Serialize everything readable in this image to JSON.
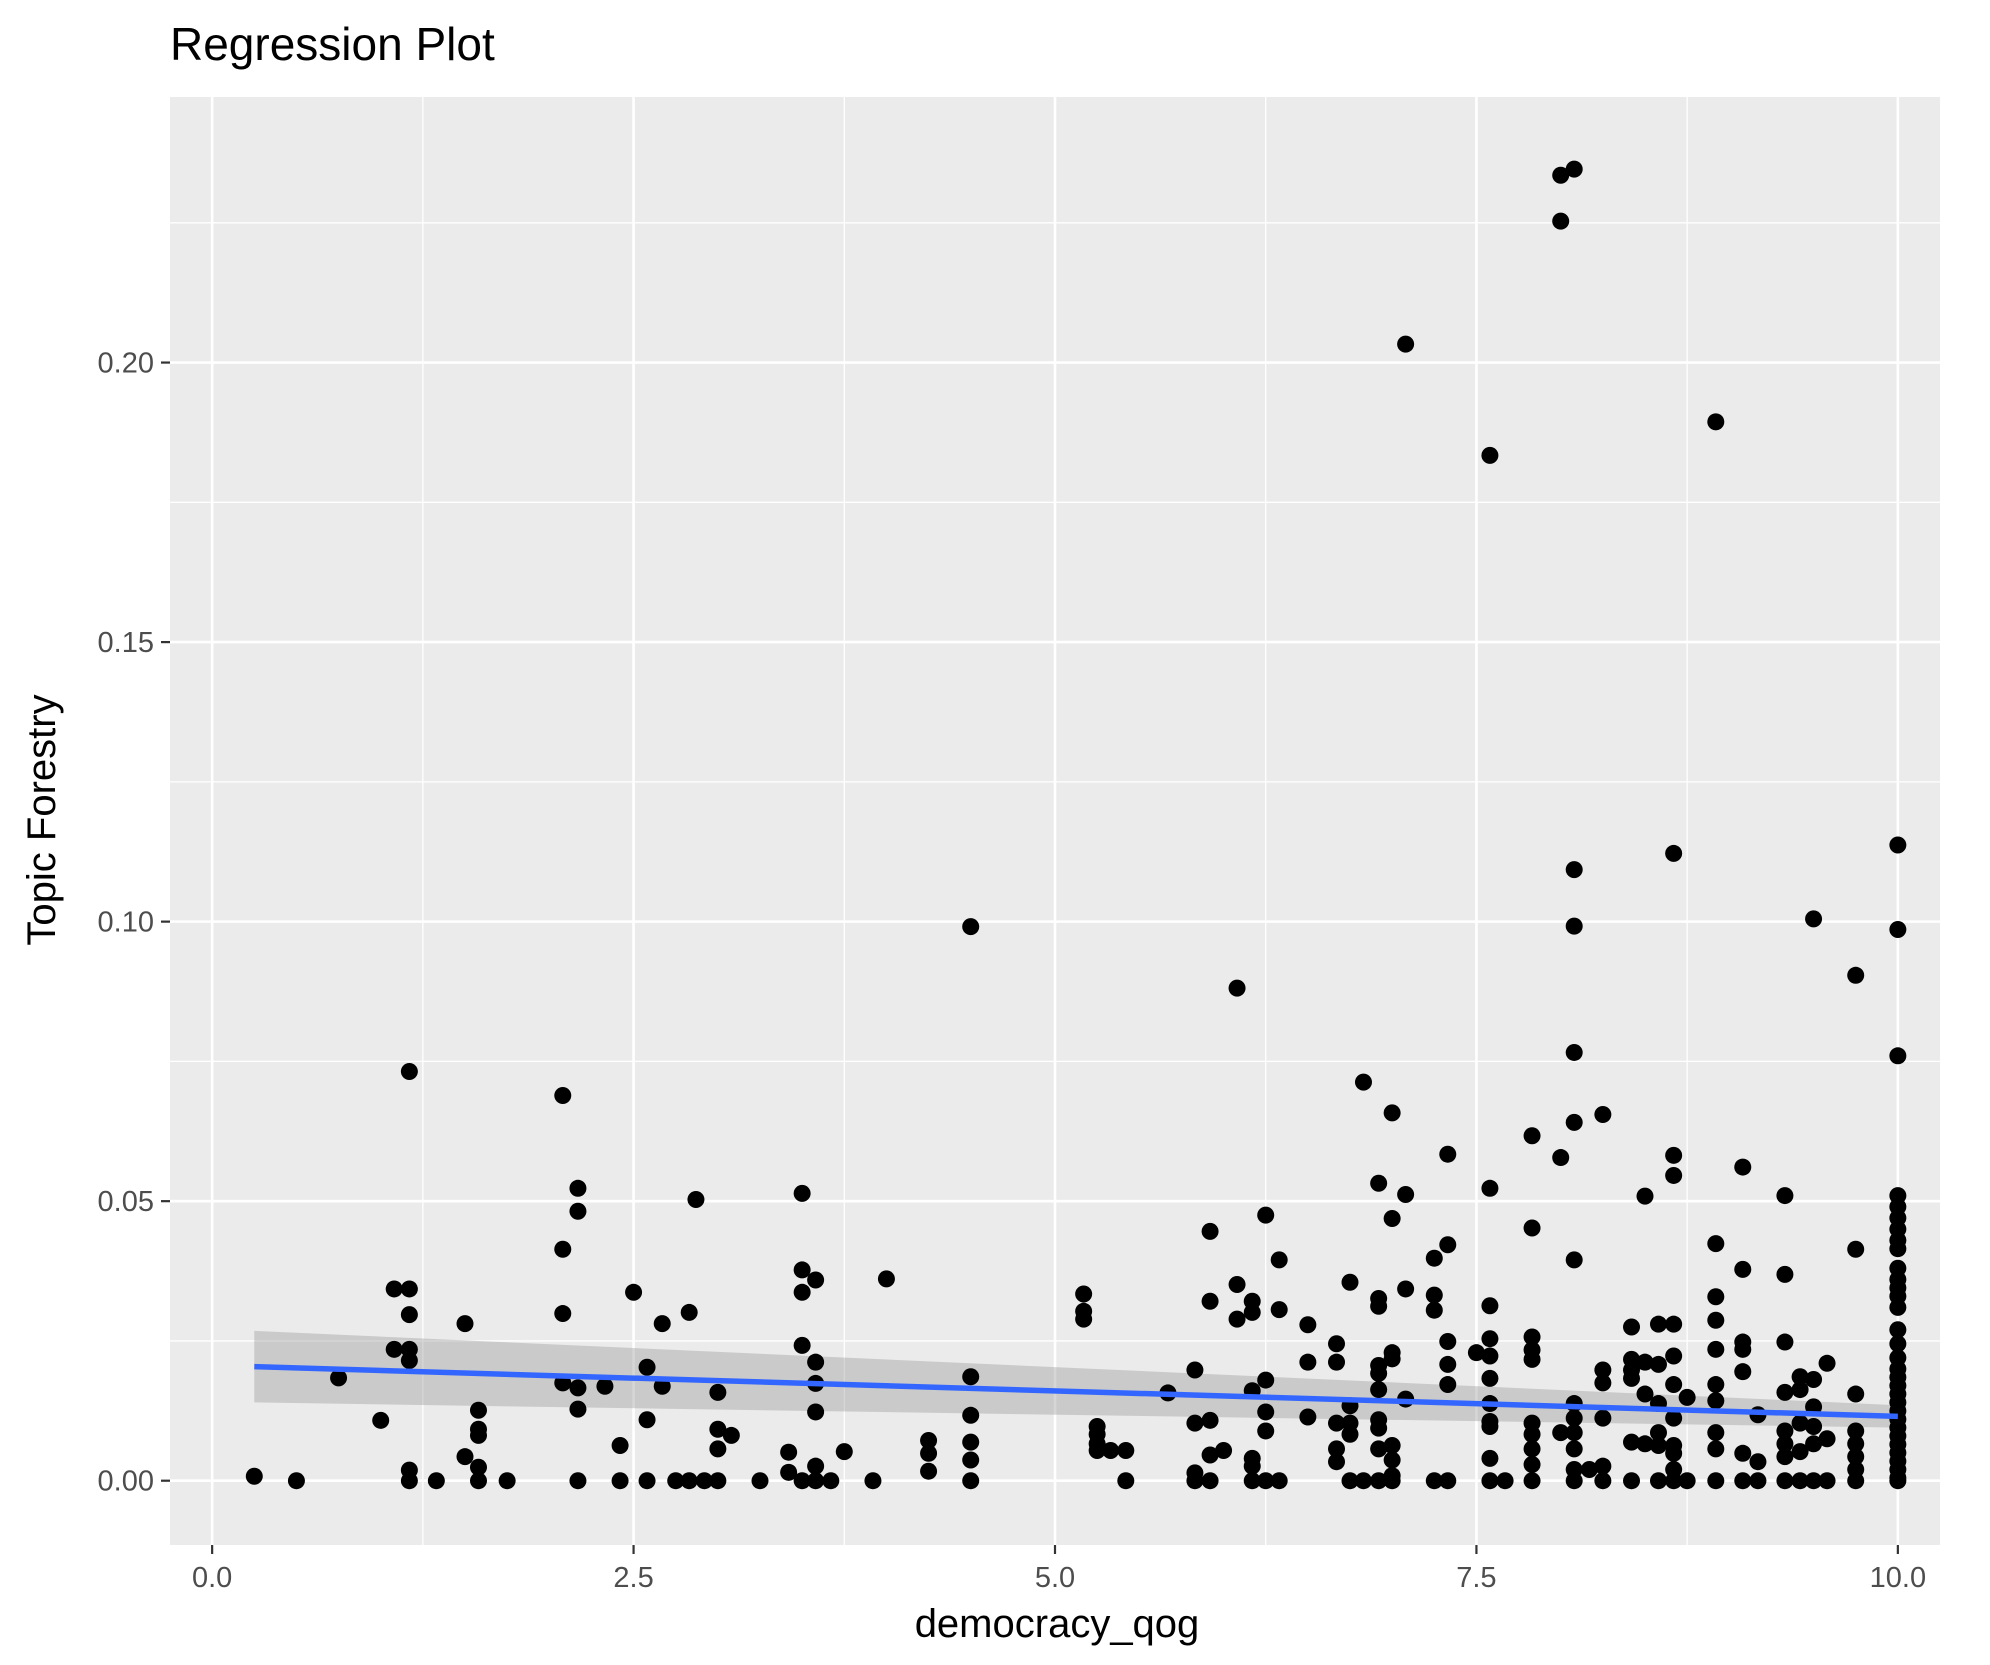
{
  "chart_data": {
    "type": "scatter",
    "title": "Regression Plot",
    "xlabel": "democracy_qog",
    "ylabel": "Topic Forestry",
    "xlim": [
      -0.25,
      10.25
    ],
    "ylim": [
      -0.0115,
      0.2475
    ],
    "x_ticks": [
      0,
      2.5,
      5,
      7.5,
      10
    ],
    "x_tick_labels": [
      "0.0",
      "2.5",
      "5.0",
      "7.5",
      "10.0"
    ],
    "y_ticks": [
      0,
      0.05,
      0.1,
      0.15,
      0.2
    ],
    "y_tick_labels": [
      "0.00",
      "0.05",
      "0.10",
      "0.15",
      "0.20"
    ],
    "grid": true,
    "legend": "none",
    "colors": {
      "panel": "#ebebeb",
      "grid": "#ffffff",
      "points": "#000000",
      "fit_line": "#3366ff",
      "confidence_band": "#999999"
    },
    "regression": {
      "x": [
        0.25,
        10.0
      ],
      "y": [
        0.0204,
        0.0115
      ],
      "ci_lower": [
        0.014,
        0.0095
      ],
      "ci_upper": [
        0.0268,
        0.0135
      ]
    },
    "points": [
      [
        0.25,
        0.0008
      ],
      [
        0.5,
        0.0
      ],
      [
        0.75,
        0.0184
      ],
      [
        1.0,
        0.0108
      ],
      [
        1.08,
        0.0235
      ],
      [
        1.08,
        0.0343
      ],
      [
        1.17,
        0.0343
      ],
      [
        1.17,
        0.0297
      ],
      [
        1.17,
        0.0235
      ],
      [
        1.17,
        0.0215
      ],
      [
        1.17,
        0.0732
      ],
      [
        1.17,
        0.0019
      ],
      [
        1.17,
        0.0
      ],
      [
        1.33,
        0.0
      ],
      [
        1.5,
        0.0281
      ],
      [
        1.5,
        0.0043
      ],
      [
        1.58,
        0.0126
      ],
      [
        1.58,
        0.0092
      ],
      [
        1.58,
        0.0081
      ],
      [
        1.58,
        0.0024
      ],
      [
        1.58,
        0.0
      ],
      [
        1.75,
        0.0
      ],
      [
        2.08,
        0.0689
      ],
      [
        2.08,
        0.0414
      ],
      [
        2.08,
        0.0299
      ],
      [
        2.08,
        0.0175
      ],
      [
        2.17,
        0.0523
      ],
      [
        2.17,
        0.0482
      ],
      [
        2.17,
        0.0166
      ],
      [
        2.17,
        0.0128
      ],
      [
        2.17,
        0.0
      ],
      [
        2.33,
        0.0169
      ],
      [
        2.42,
        0.0063
      ],
      [
        2.42,
        0.0
      ],
      [
        2.5,
        0.0337
      ],
      [
        2.58,
        0.0203
      ],
      [
        2.58,
        0.0109
      ],
      [
        2.58,
        0.0
      ],
      [
        2.67,
        0.0281
      ],
      [
        2.67,
        0.0169
      ],
      [
        2.75,
        0.0
      ],
      [
        2.83,
        0.0301
      ],
      [
        2.83,
        0.0
      ],
      [
        2.87,
        0.0503
      ],
      [
        2.92,
        0.0
      ],
      [
        3.0,
        0.0158
      ],
      [
        3.0,
        0.0092
      ],
      [
        3.0,
        0.0057
      ],
      [
        3.0,
        0.0
      ],
      [
        3.08,
        0.0081
      ],
      [
        3.25,
        0.0
      ],
      [
        3.42,
        0.0051
      ],
      [
        3.42,
        0.0015
      ],
      [
        3.5,
        0.0514
      ],
      [
        3.5,
        0.0377
      ],
      [
        3.5,
        0.0337
      ],
      [
        3.5,
        0.0242
      ],
      [
        3.5,
        0.0
      ],
      [
        3.58,
        0.0359
      ],
      [
        3.58,
        0.0212
      ],
      [
        3.58,
        0.0174
      ],
      [
        3.58,
        0.0123
      ],
      [
        3.58,
        0.0026
      ],
      [
        3.58,
        0.0
      ],
      [
        3.67,
        0.0
      ],
      [
        3.75,
        0.0052
      ],
      [
        3.92,
        0.0
      ],
      [
        4.0,
        0.0361
      ],
      [
        4.25,
        0.0072
      ],
      [
        4.25,
        0.0049
      ],
      [
        4.25,
        0.0017
      ],
      [
        4.5,
        0.0991
      ],
      [
        4.5,
        0.0186
      ],
      [
        4.5,
        0.0117
      ],
      [
        4.5,
        0.0069
      ],
      [
        4.5,
        0.0037
      ],
      [
        4.5,
        0.0
      ],
      [
        5.17,
        0.0334
      ],
      [
        5.17,
        0.0303
      ],
      [
        5.17,
        0.0289
      ],
      [
        5.25,
        0.0097
      ],
      [
        5.25,
        0.0083
      ],
      [
        5.25,
        0.0066
      ],
      [
        5.25,
        0.0054
      ],
      [
        5.33,
        0.0054
      ],
      [
        5.42,
        0.0054
      ],
      [
        5.42,
        0.0
      ],
      [
        5.67,
        0.0157
      ],
      [
        5.83,
        0.0198
      ],
      [
        5.83,
        0.0103
      ],
      [
        5.83,
        0.0014
      ],
      [
        5.83,
        0.0
      ],
      [
        5.92,
        0.0446
      ],
      [
        5.92,
        0.0321
      ],
      [
        5.92,
        0.0108
      ],
      [
        5.92,
        0.0046
      ],
      [
        5.92,
        0.0
      ],
      [
        6.0,
        0.0054
      ],
      [
        6.08,
        0.0881
      ],
      [
        6.08,
        0.0351
      ],
      [
        6.08,
        0.0289
      ],
      [
        6.17,
        0.0321
      ],
      [
        6.17,
        0.0301
      ],
      [
        6.17,
        0.0161
      ],
      [
        6.17,
        0.004
      ],
      [
        6.17,
        0.0026
      ],
      [
        6.17,
        0.0
      ],
      [
        6.25,
        0.0475
      ],
      [
        6.25,
        0.018
      ],
      [
        6.25,
        0.0123
      ],
      [
        6.25,
        0.0089
      ],
      [
        6.25,
        0.0
      ],
      [
        6.33,
        0.0395
      ],
      [
        6.33,
        0.0306
      ],
      [
        6.33,
        0.0
      ],
      [
        6.5,
        0.0279
      ],
      [
        6.5,
        0.0212
      ],
      [
        6.5,
        0.0114
      ],
      [
        6.67,
        0.0245
      ],
      [
        6.67,
        0.0212
      ],
      [
        6.67,
        0.0103
      ],
      [
        6.67,
        0.0057
      ],
      [
        6.67,
        0.0034
      ],
      [
        6.75,
        0.0355
      ],
      [
        6.75,
        0.0134
      ],
      [
        6.75,
        0.0103
      ],
      [
        6.75,
        0.0083
      ],
      [
        6.75,
        0.0
      ],
      [
        6.83,
        0.0713
      ],
      [
        6.83,
        0.0
      ],
      [
        6.92,
        0.0532
      ],
      [
        6.92,
        0.0326
      ],
      [
        6.92,
        0.0312
      ],
      [
        6.92,
        0.0206
      ],
      [
        6.92,
        0.0192
      ],
      [
        6.92,
        0.0163
      ],
      [
        6.92,
        0.0109
      ],
      [
        6.92,
        0.0094
      ],
      [
        6.92,
        0.0057
      ],
      [
        6.92,
        0.0
      ],
      [
        7.0,
        0.0658
      ],
      [
        7.0,
        0.0469
      ],
      [
        7.0,
        0.0229
      ],
      [
        7.0,
        0.0218
      ],
      [
        7.0,
        0.0063
      ],
      [
        7.0,
        0.0037
      ],
      [
        7.0,
        0.0009
      ],
      [
        7.0,
        0.0
      ],
      [
        7.08,
        0.2033
      ],
      [
        7.08,
        0.0512
      ],
      [
        7.08,
        0.0343
      ],
      [
        7.08,
        0.0146
      ],
      [
        7.25,
        0.0398
      ],
      [
        7.25,
        0.0332
      ],
      [
        7.25,
        0.0305
      ],
      [
        7.25,
        0.0
      ],
      [
        7.33,
        0.0584
      ],
      [
        7.33,
        0.0422
      ],
      [
        7.33,
        0.0249
      ],
      [
        7.33,
        0.0208
      ],
      [
        7.33,
        0.0172
      ],
      [
        7.33,
        0.0
      ],
      [
        7.5,
        0.0229
      ],
      [
        7.58,
        0.1834
      ],
      [
        7.58,
        0.0523
      ],
      [
        7.58,
        0.0313
      ],
      [
        7.58,
        0.0254
      ],
      [
        7.58,
        0.0223
      ],
      [
        7.58,
        0.0183
      ],
      [
        7.58,
        0.0138
      ],
      [
        7.58,
        0.0106
      ],
      [
        7.58,
        0.0097
      ],
      [
        7.58,
        0.004
      ],
      [
        7.58,
        0.0
      ],
      [
        7.67,
        0.0
      ],
      [
        7.83,
        0.0617
      ],
      [
        7.83,
        0.0452
      ],
      [
        7.83,
        0.0257
      ],
      [
        7.83,
        0.0234
      ],
      [
        7.83,
        0.0217
      ],
      [
        7.83,
        0.0103
      ],
      [
        7.83,
        0.0083
      ],
      [
        7.83,
        0.0057
      ],
      [
        7.83,
        0.0029
      ],
      [
        7.83,
        0.0
      ],
      [
        8.0,
        0.2335
      ],
      [
        8.0,
        0.2253
      ],
      [
        8.0,
        0.0578
      ],
      [
        8.0,
        0.0086
      ],
      [
        8.08,
        0.2346
      ],
      [
        8.08,
        0.1093
      ],
      [
        8.08,
        0.0992
      ],
      [
        8.08,
        0.0766
      ],
      [
        8.08,
        0.0641
      ],
      [
        8.08,
        0.0395
      ],
      [
        8.08,
        0.0138
      ],
      [
        8.08,
        0.0112
      ],
      [
        8.08,
        0.0086
      ],
      [
        8.08,
        0.0057
      ],
      [
        8.08,
        0.002
      ],
      [
        8.08,
        0.0
      ],
      [
        8.17,
        0.002
      ],
      [
        8.25,
        0.0655
      ],
      [
        8.25,
        0.0198
      ],
      [
        8.25,
        0.0175
      ],
      [
        8.25,
        0.0112
      ],
      [
        8.25,
        0.0026
      ],
      [
        8.25,
        0.0
      ],
      [
        8.42,
        0.0275
      ],
      [
        8.42,
        0.0217
      ],
      [
        8.42,
        0.0198
      ],
      [
        8.42,
        0.0183
      ],
      [
        8.42,
        0.0069
      ],
      [
        8.42,
        0.0
      ],
      [
        8.5,
        0.0509
      ],
      [
        8.5,
        0.0212
      ],
      [
        8.5,
        0.0155
      ],
      [
        8.5,
        0.0066
      ],
      [
        8.58,
        0.028
      ],
      [
        8.58,
        0.0208
      ],
      [
        8.58,
        0.0138
      ],
      [
        8.58,
        0.0086
      ],
      [
        8.58,
        0.0063
      ],
      [
        8.58,
        0.0
      ],
      [
        8.67,
        0.1122
      ],
      [
        8.67,
        0.0582
      ],
      [
        8.67,
        0.0546
      ],
      [
        8.67,
        0.028
      ],
      [
        8.67,
        0.0223
      ],
      [
        8.67,
        0.0172
      ],
      [
        8.67,
        0.0112
      ],
      [
        8.67,
        0.0063
      ],
      [
        8.67,
        0.0049
      ],
      [
        8.67,
        0.002
      ],
      [
        8.67,
        0.0
      ],
      [
        8.75,
        0.0149
      ],
      [
        8.75,
        0.0
      ],
      [
        8.92,
        0.1894
      ],
      [
        8.92,
        0.0424
      ],
      [
        8.92,
        0.0329
      ],
      [
        8.92,
        0.0287
      ],
      [
        8.92,
        0.0235
      ],
      [
        8.92,
        0.0172
      ],
      [
        8.92,
        0.0143
      ],
      [
        8.92,
        0.0086
      ],
      [
        8.92,
        0.0057
      ],
      [
        8.92,
        0.0
      ],
      [
        9.08,
        0.0561
      ],
      [
        9.08,
        0.0378
      ],
      [
        9.08,
        0.0248
      ],
      [
        9.08,
        0.0235
      ],
      [
        9.08,
        0.0195
      ],
      [
        9.08,
        0.0049
      ],
      [
        9.08,
        0.0
      ],
      [
        9.17,
        0.0118
      ],
      [
        9.17,
        0.0034
      ],
      [
        9.17,
        0.0
      ],
      [
        9.33,
        0.051
      ],
      [
        9.33,
        0.0369
      ],
      [
        9.33,
        0.0248
      ],
      [
        9.33,
        0.0158
      ],
      [
        9.33,
        0.0089
      ],
      [
        9.33,
        0.0066
      ],
      [
        9.33,
        0.0043
      ],
      [
        9.33,
        0.0
      ],
      [
        9.42,
        0.0186
      ],
      [
        9.42,
        0.0163
      ],
      [
        9.42,
        0.0103
      ],
      [
        9.42,
        0.0052
      ],
      [
        9.42,
        0.0
      ],
      [
        9.5,
        0.1005
      ],
      [
        9.5,
        0.0181
      ],
      [
        9.5,
        0.0132
      ],
      [
        9.5,
        0.0097
      ],
      [
        9.5,
        0.0066
      ],
      [
        9.5,
        0.0
      ],
      [
        9.58,
        0.021
      ],
      [
        9.58,
        0.0075
      ],
      [
        9.58,
        0.0
      ],
      [
        9.75,
        0.0904
      ],
      [
        9.75,
        0.0414
      ],
      [
        9.75,
        0.0155
      ],
      [
        9.75,
        0.0089
      ],
      [
        9.75,
        0.0066
      ],
      [
        9.75,
        0.0043
      ],
      [
        9.75,
        0.002
      ],
      [
        9.75,
        0.0
      ],
      [
        10.0,
        0.1137
      ],
      [
        10.0,
        0.0986
      ],
      [
        10.0,
        0.076
      ],
      [
        10.0,
        0.051
      ],
      [
        10.0,
        0.049
      ],
      [
        10.0,
        0.047
      ],
      [
        10.0,
        0.045
      ],
      [
        10.0,
        0.043
      ],
      [
        10.0,
        0.0415
      ],
      [
        10.0,
        0.038
      ],
      [
        10.0,
        0.036
      ],
      [
        10.0,
        0.0345
      ],
      [
        10.0,
        0.033
      ],
      [
        10.0,
        0.031
      ],
      [
        10.0,
        0.027
      ],
      [
        10.0,
        0.0245
      ],
      [
        10.0,
        0.022
      ],
      [
        10.0,
        0.02
      ],
      [
        10.0,
        0.0185
      ],
      [
        10.0,
        0.017
      ],
      [
        10.0,
        0.0155
      ],
      [
        10.0,
        0.014
      ],
      [
        10.0,
        0.0125
      ],
      [
        10.0,
        0.011
      ],
      [
        10.0,
        0.0095
      ],
      [
        10.0,
        0.008
      ],
      [
        10.0,
        0.0065
      ],
      [
        10.0,
        0.005
      ],
      [
        10.0,
        0.0035
      ],
      [
        10.0,
        0.002
      ],
      [
        10.0,
        0.0005
      ],
      [
        10.0,
        0.0
      ]
    ]
  }
}
